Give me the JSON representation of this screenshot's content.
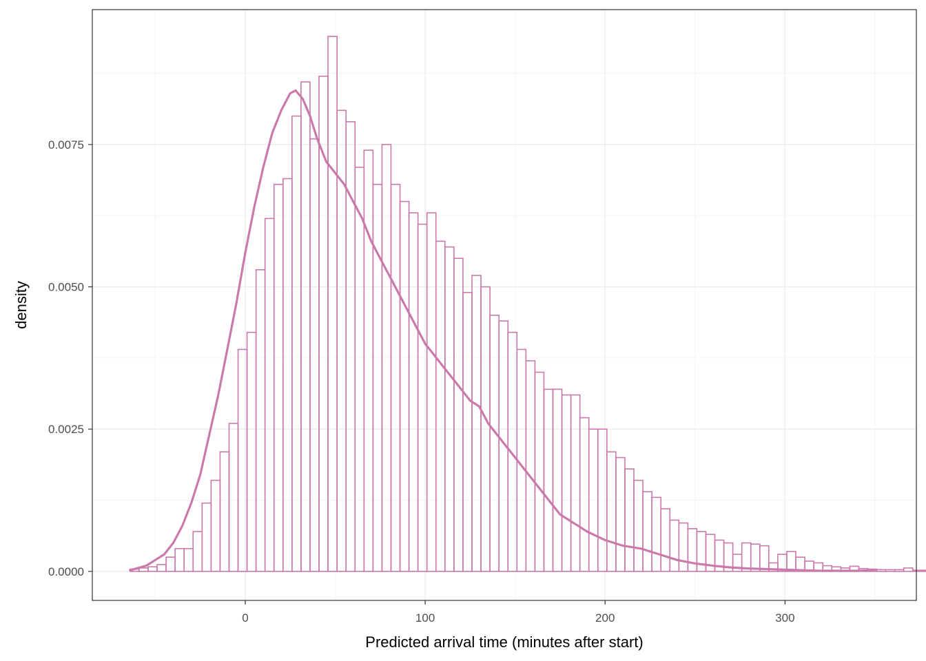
{
  "chart_data": {
    "type": "bar",
    "title": "",
    "xlabel": "Predicted arrival time (minutes after start)",
    "ylabel": "density",
    "xlim": [
      -85,
      373
    ],
    "ylim": [
      -0.00051,
      0.00987
    ],
    "x_ticks": [
      0,
      100,
      200,
      300
    ],
    "x_tick_labels": [
      "0",
      "100",
      "200",
      "300"
    ],
    "y_ticks": [
      0,
      0.0025,
      0.005,
      0.0075
    ],
    "y_tick_labels": [
      "0.0000",
      "0.0025",
      "0.0050",
      "0.0075"
    ],
    "grid": true,
    "legend": "none",
    "bin_width": 5,
    "bins_start": -64,
    "histogram_values": [
      4e-05,
      6e-05,
      8e-05,
      0.00012,
      0.00025,
      0.0004,
      0.0004,
      0.0007,
      0.0012,
      0.0016,
      0.0021,
      0.0026,
      0.0039,
      0.0042,
      0.0053,
      0.0062,
      0.0068,
      0.0069,
      0.008,
      0.0086,
      0.0076,
      0.0087,
      0.0094,
      0.0081,
      0.0079,
      0.0071,
      0.0074,
      0.0068,
      0.0075,
      0.0068,
      0.0065,
      0.0063,
      0.0061,
      0.0063,
      0.0058,
      0.0057,
      0.0055,
      0.0049,
      0.0052,
      0.005,
      0.0045,
      0.0044,
      0.0042,
      0.0039,
      0.0037,
      0.0035,
      0.0032,
      0.0032,
      0.0031,
      0.0031,
      0.0027,
      0.0025,
      0.0025,
      0.0021,
      0.002,
      0.0018,
      0.0016,
      0.0014,
      0.0013,
      0.0011,
      0.0009,
      0.00085,
      0.00075,
      0.0007,
      0.00065,
      0.00055,
      0.0005,
      0.0003,
      0.0005,
      0.00048,
      0.00045,
      0.00015,
      0.0003,
      0.00035,
      0.00025,
      0.00018,
      0.00015,
      0.0001,
      8e-05,
      6e-05,
      9e-05,
      5e-05,
      4e-05,
      3e-05,
      3e-05,
      3e-05,
      6e-05,
      2e-05,
      2e-05,
      2e-05,
      1e-05,
      1e-05,
      1e-05,
      1e-05,
      1e-05,
      1e-05
    ],
    "density_curve": {
      "x": [
        -64,
        -55,
        -50,
        -45,
        -40,
        -35,
        -30,
        -25,
        -20,
        -15,
        -10,
        -5,
        0,
        5,
        10,
        15,
        20,
        25,
        28,
        32,
        36,
        40,
        45,
        50,
        55,
        60,
        65,
        70,
        75,
        80,
        85,
        90,
        95,
        100,
        105,
        110,
        115,
        120,
        125,
        130,
        135,
        140,
        145,
        150,
        155,
        160,
        165,
        170,
        175,
        180,
        185,
        190,
        200,
        210,
        220,
        230,
        240,
        250,
        260,
        270,
        280,
        290,
        300,
        310,
        320,
        330,
        340,
        350
      ],
      "y": [
        2e-05,
        0.0001,
        0.0002,
        0.0003,
        0.0005,
        0.0008,
        0.0012,
        0.0017,
        0.0024,
        0.0031,
        0.0039,
        0.0047,
        0.0056,
        0.0064,
        0.0071,
        0.0077,
        0.0081,
        0.0084,
        0.00845,
        0.0083,
        0.008,
        0.0076,
        0.0072,
        0.007,
        0.0068,
        0.0065,
        0.0062,
        0.0058,
        0.0055,
        0.0052,
        0.0049,
        0.0046,
        0.0043,
        0.004,
        0.0038,
        0.0036,
        0.0034,
        0.0032,
        0.003,
        0.0029,
        0.0026,
        0.0024,
        0.0022,
        0.002,
        0.0018,
        0.0016,
        0.0014,
        0.0012,
        0.001,
        0.0009,
        0.0008,
        0.0007,
        0.00055,
        0.00045,
        0.0004,
        0.0003,
        0.0002,
        0.00014,
        0.0001,
        7e-05,
        5e-05,
        4e-05,
        3e-05,
        2e-05,
        1e-05,
        1e-05,
        1e-05,
        2e-05
      ]
    },
    "colors": {
      "bar_outline": "#c979aa",
      "curve": "#c979aa",
      "grid_major": "#ebebeb",
      "grid_minor": "#f3f3f3",
      "panel_border": "#333333",
      "background": "#ffffff"
    }
  }
}
